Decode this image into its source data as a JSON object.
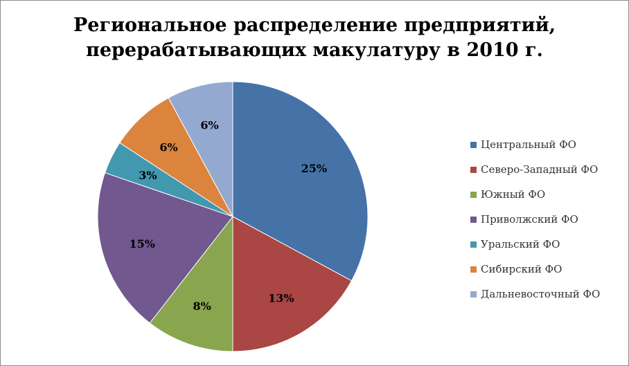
{
  "chart_data": {
    "type": "pie",
    "title_line1": "Региональное распределение предприятий,",
    "title_line2": "перерабатывающих макулатуру в 2010 г.",
    "values": [
      25,
      13,
      8,
      15,
      3,
      6,
      6
    ],
    "labels": [
      "25%",
      "13%",
      "8%",
      "15%",
      "3%",
      "6%",
      "6%"
    ],
    "legend": [
      "Центральный ФО",
      "Северо-Западный ФО",
      "Южный ФО",
      "Приволжский ФО",
      "Уральский ФО",
      "Сибирский ФО",
      "Дальневосточный ФО"
    ],
    "colors": [
      "#4572a7",
      "#aa4643",
      "#89a54e",
      "#71588f",
      "#4198af",
      "#db843d",
      "#93a9cf"
    ],
    "legend_position": "right"
  }
}
